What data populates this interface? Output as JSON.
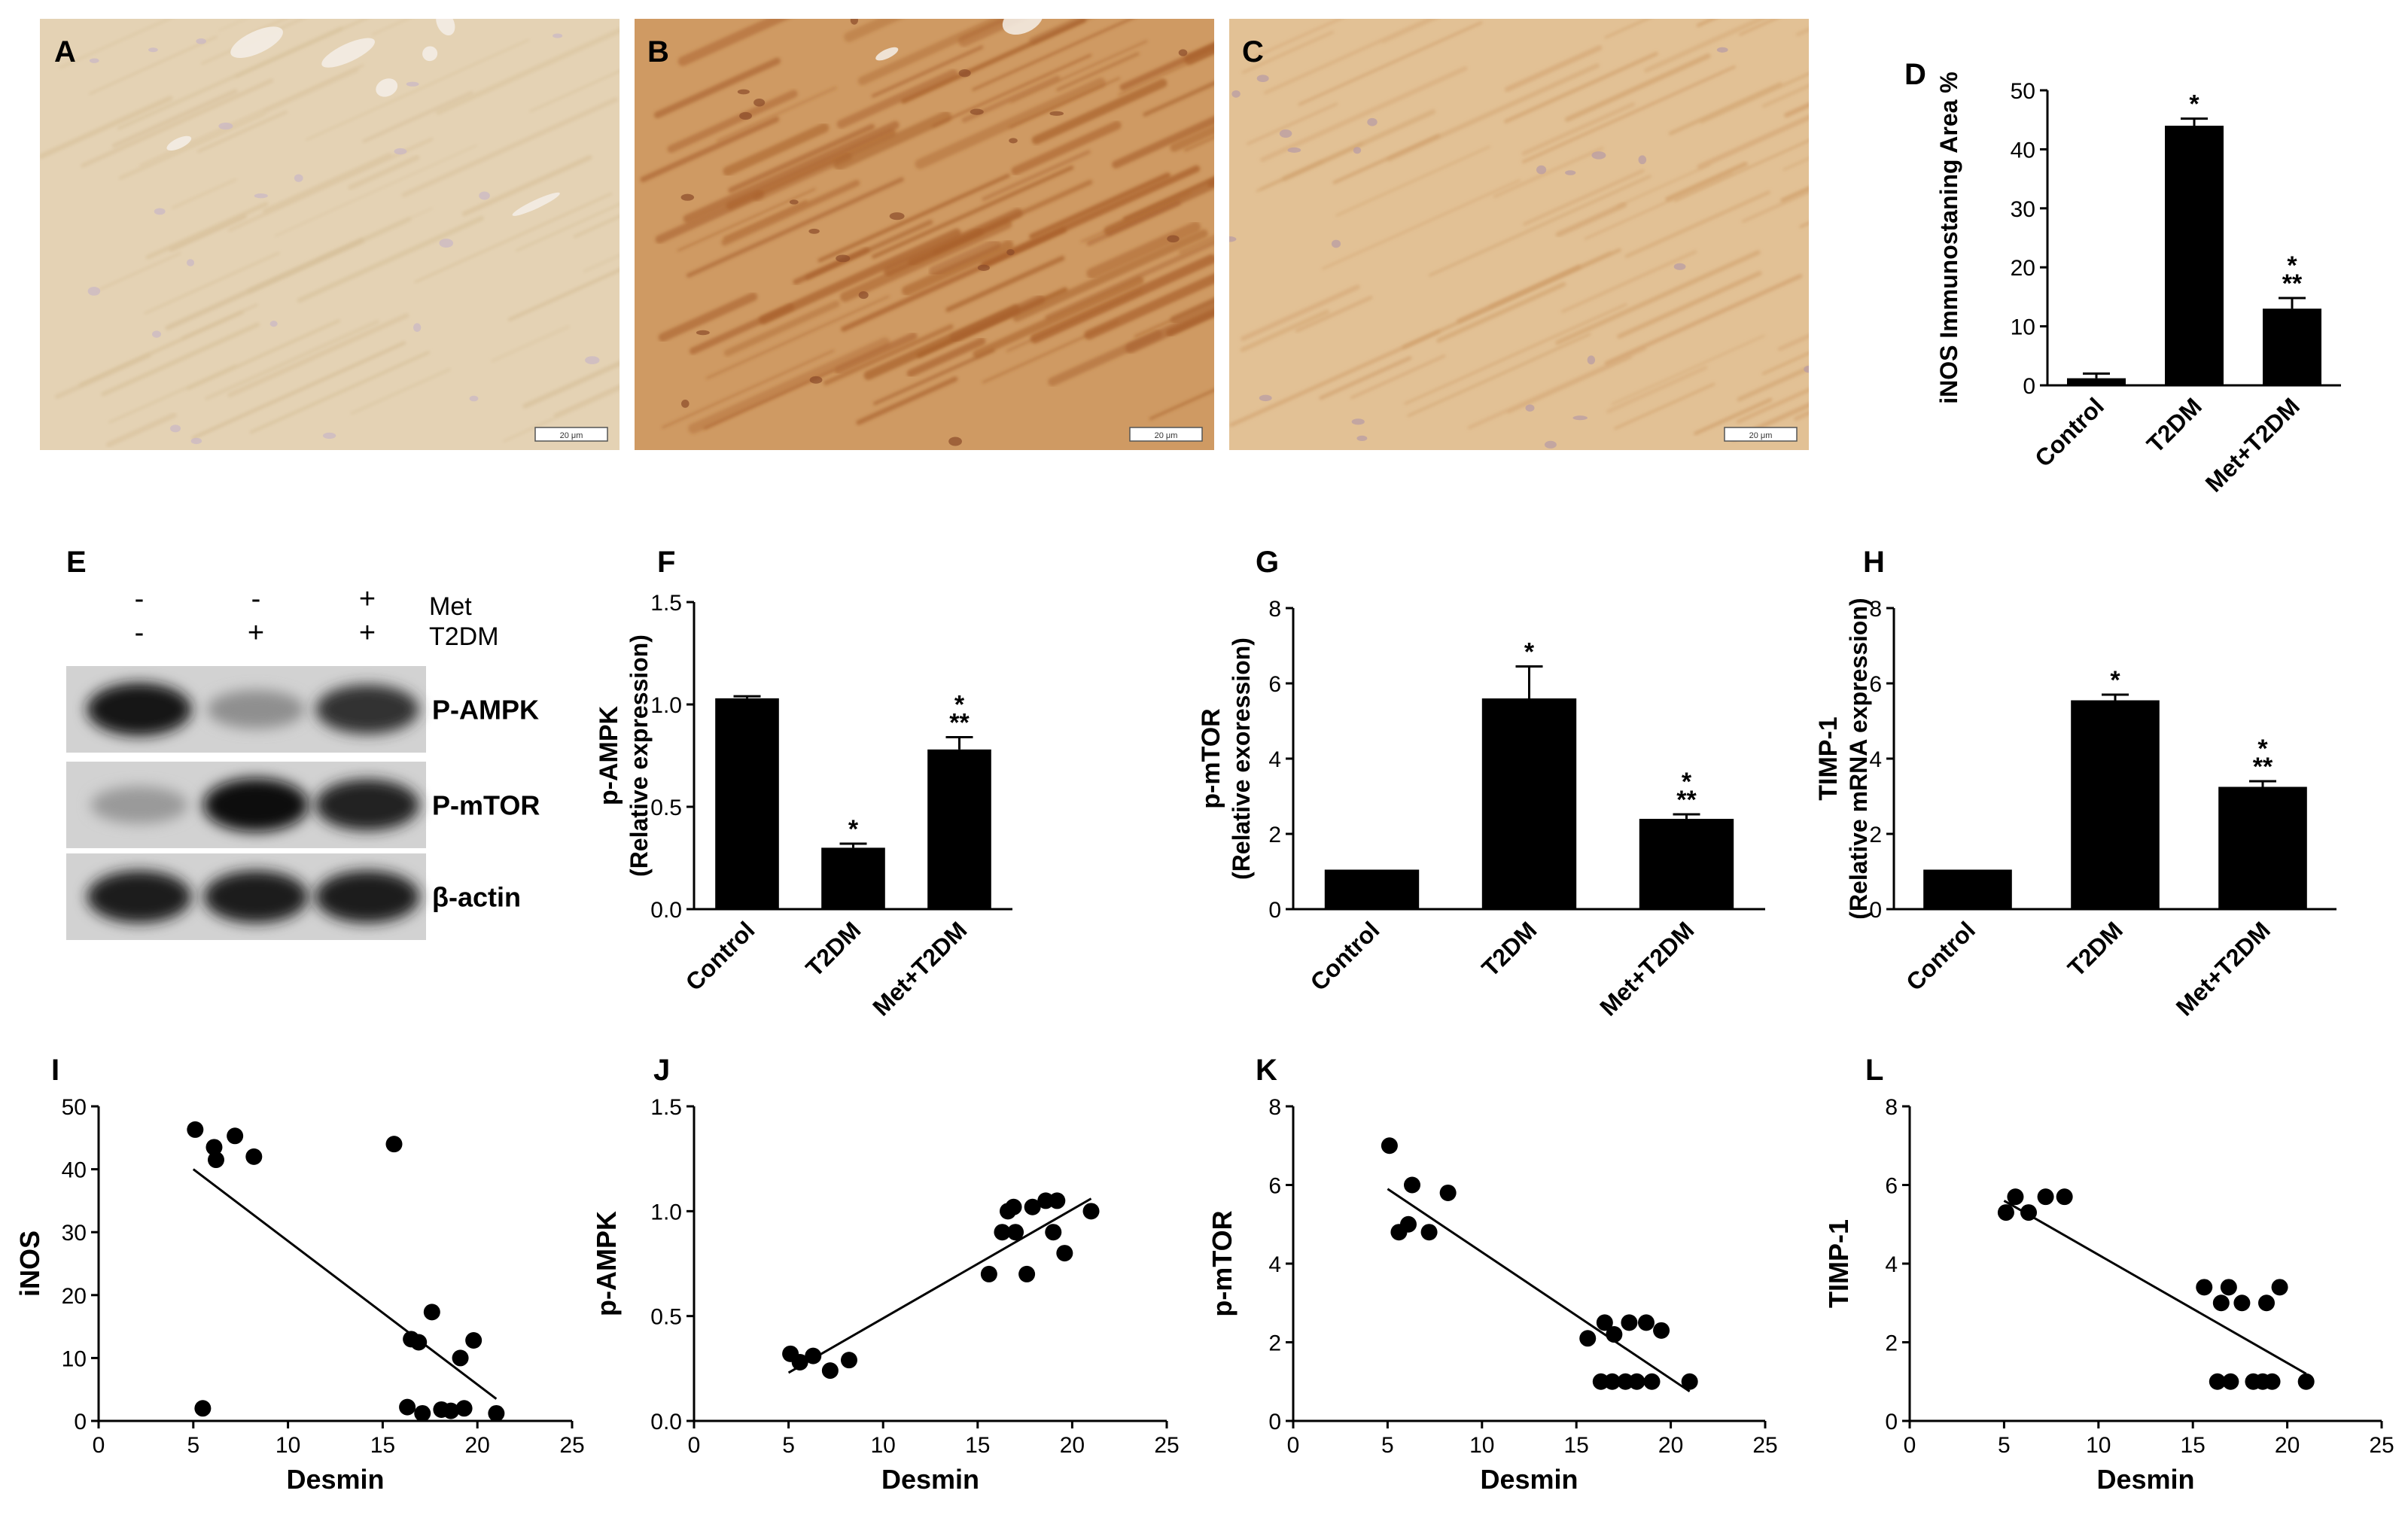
{
  "panels": {
    "A": "A",
    "B": "B",
    "C": "C",
    "D": "D",
    "E": "E",
    "F": "F",
    "G": "G",
    "H": "H",
    "I": "I",
    "J": "J",
    "K": "K",
    "L": "L"
  },
  "micrographs": [
    {
      "panel": "A",
      "scale_bar": "20 μm",
      "tone": "#e4d2b4",
      "fiber": "#d6bf98",
      "cell": "#c9b6c6",
      "density": "light"
    },
    {
      "panel": "B",
      "scale_bar": "20 μm",
      "tone": "#cf9a63",
      "fiber": "#a85f2a",
      "cell": "#8a4a2a",
      "density": "heavy"
    },
    {
      "panel": "C",
      "scale_bar": "20 μm",
      "tone": "#e2c195",
      "fiber": "#cf9d68",
      "cell": "#b79aa6",
      "density": "moderate"
    }
  ],
  "western_blot": {
    "treatment_rows": [
      {
        "label": "Met",
        "signs": [
          "-",
          "-",
          "+"
        ]
      },
      {
        "label": "T2DM",
        "signs": [
          "-",
          "+",
          "+"
        ]
      }
    ],
    "bands": [
      {
        "label": "P-AMPK",
        "intensities": [
          0.95,
          0.35,
          0.8
        ]
      },
      {
        "label": "P-mTOR",
        "intensities": [
          0.3,
          0.98,
          0.88
        ]
      },
      {
        "label": "β-actin",
        "intensities": [
          0.92,
          0.92,
          0.92
        ]
      }
    ]
  },
  "chart_data": [
    {
      "panel": "D",
      "type": "bar",
      "title": "",
      "categories": [
        "Control",
        "T2DM",
        "Met+T2DM"
      ],
      "values": [
        1.2,
        44,
        13
      ],
      "errors": [
        0.8,
        1.2,
        1.8
      ],
      "significance": [
        "",
        "*",
        "*\n**"
      ],
      "ylabel": "iNOS Immunostaning Area %",
      "ylim": [
        0,
        50
      ],
      "yticks": [
        "0",
        "10",
        "20",
        "30",
        "40",
        "50"
      ],
      "grid": false,
      "legend": "none"
    },
    {
      "panel": "F",
      "type": "bar",
      "title": "",
      "categories": [
        "Control",
        "T2DM",
        "Met+T2DM"
      ],
      "values": [
        1.03,
        0.3,
        0.78
      ],
      "errors": [
        0.01,
        0.02,
        0.06
      ],
      "significance": [
        "",
        "*",
        "*\n**"
      ],
      "ylabel": "p-AMPK",
      "ylabel2": "(Relative expression)",
      "ylim": [
        0,
        1.5
      ],
      "yticks": [
        "0.0",
        "0.5",
        "1.0",
        "1.5"
      ],
      "grid": false,
      "legend": "none"
    },
    {
      "panel": "G",
      "type": "bar",
      "title": "",
      "categories": [
        "Control",
        "T2DM",
        "Met+T2DM"
      ],
      "values": [
        1.05,
        5.6,
        2.4
      ],
      "errors": [
        0.0,
        0.85,
        0.12
      ],
      "significance": [
        "",
        "*",
        "*\n**"
      ],
      "ylabel": "p-mTOR",
      "ylabel2": "(Relative exoression)",
      "ylim": [
        0,
        8
      ],
      "yticks": [
        "0",
        "2",
        "4",
        "6",
        "8"
      ],
      "grid": false,
      "legend": "none"
    },
    {
      "panel": "H",
      "type": "bar",
      "title": "",
      "categories": [
        "Control",
        "T2DM",
        "Met+T2DM"
      ],
      "values": [
        1.05,
        5.55,
        3.25
      ],
      "errors": [
        0.0,
        0.15,
        0.15
      ],
      "significance": [
        "",
        "*",
        "*\n**"
      ],
      "ylabel": "TIMP-1",
      "ylabel2": "(Relative mRNA expression)",
      "ylim": [
        0,
        8
      ],
      "yticks": [
        "0",
        "2",
        "4",
        "6",
        "8"
      ],
      "grid": false,
      "legend": "none"
    },
    {
      "panel": "I",
      "type": "scatter",
      "xlabel": "Desmin",
      "ylabel": "iNOS",
      "xlim": [
        0,
        25
      ],
      "ylim": [
        0,
        50
      ],
      "xticks": [
        "0",
        "5",
        "10",
        "15",
        "20",
        "25"
      ],
      "yticks": [
        "0",
        "10",
        "20",
        "30",
        "40",
        "50"
      ],
      "points": [
        [
          5.1,
          46.3
        ],
        [
          5.5,
          2
        ],
        [
          6.1,
          43.5
        ],
        [
          6.2,
          41.5
        ],
        [
          7.2,
          45.3
        ],
        [
          8.2,
          42
        ],
        [
          15.6,
          44
        ],
        [
          16.3,
          2.2
        ],
        [
          16.5,
          13
        ],
        [
          16.9,
          12.5
        ],
        [
          17.1,
          1.2
        ],
        [
          17.6,
          17.3
        ],
        [
          18.1,
          1.8
        ],
        [
          18.6,
          1.6
        ],
        [
          19.1,
          10
        ],
        [
          19.3,
          2
        ],
        [
          19.8,
          12.8
        ],
        [
          21.0,
          1.2
        ]
      ],
      "fit": {
        "x": [
          5.0,
          21.0
        ],
        "y": [
          40,
          3.5
        ]
      },
      "grid": false,
      "legend": "none"
    },
    {
      "panel": "J",
      "type": "scatter",
      "xlabel": "Desmin",
      "ylabel": "p-AMPK",
      "xlim": [
        0,
        25
      ],
      "ylim": [
        0,
        1.5
      ],
      "xticks": [
        "0",
        "5",
        "10",
        "15",
        "20",
        "25"
      ],
      "yticks": [
        "0.0",
        "0.5",
        "1.0",
        "1.5"
      ],
      "points": [
        [
          5.1,
          0.32
        ],
        [
          5.6,
          0.28
        ],
        [
          6.3,
          0.31
        ],
        [
          7.2,
          0.24
        ],
        [
          8.2,
          0.29
        ],
        [
          15.6,
          0.7
        ],
        [
          16.3,
          0.9
        ],
        [
          16.6,
          1.0
        ],
        [
          16.9,
          1.02
        ],
        [
          17.0,
          0.9
        ],
        [
          17.6,
          0.7
        ],
        [
          17.9,
          1.02
        ],
        [
          18.6,
          1.05
        ],
        [
          19.0,
          0.9
        ],
        [
          19.2,
          1.05
        ],
        [
          19.6,
          0.8
        ],
        [
          21.0,
          1.0
        ]
      ],
      "fit": {
        "x": [
          5.0,
          21.0
        ],
        "y": [
          0.23,
          1.06
        ]
      },
      "grid": false,
      "legend": "none"
    },
    {
      "panel": "K",
      "type": "scatter",
      "xlabel": "Desmin",
      "ylabel": "p-mTOR",
      "xlim": [
        0,
        25
      ],
      "ylim": [
        0,
        8
      ],
      "xticks": [
        "0",
        "5",
        "10",
        "15",
        "20",
        "25"
      ],
      "yticks": [
        "0",
        "2",
        "4",
        "6",
        "8"
      ],
      "points": [
        [
          5.1,
          7.0
        ],
        [
          5.6,
          4.8
        ],
        [
          6.1,
          5.0
        ],
        [
          6.3,
          6.0
        ],
        [
          7.2,
          4.8
        ],
        [
          8.2,
          5.8
        ],
        [
          15.6,
          2.1
        ],
        [
          16.3,
          1.0
        ],
        [
          16.5,
          2.5
        ],
        [
          16.9,
          1.0
        ],
        [
          17.0,
          2.2
        ],
        [
          17.6,
          1.0
        ],
        [
          17.8,
          2.5
        ],
        [
          18.2,
          1.0
        ],
        [
          18.7,
          2.5
        ],
        [
          19.0,
          1.0
        ],
        [
          19.5,
          2.3
        ],
        [
          21.0,
          1.0
        ]
      ],
      "fit": {
        "x": [
          5.0,
          21.0
        ],
        "y": [
          5.9,
          0.75
        ]
      },
      "grid": false,
      "legend": "none"
    },
    {
      "panel": "L",
      "type": "scatter",
      "xlabel": "Desmin",
      "ylabel": "TIMP-1",
      "xlim": [
        0,
        25
      ],
      "ylim": [
        0,
        8
      ],
      "xticks": [
        "0",
        "5",
        "10",
        "15",
        "20",
        "25"
      ],
      "yticks": [
        "0",
        "2",
        "4",
        "6",
        "8"
      ],
      "points": [
        [
          5.1,
          5.3
        ],
        [
          5.6,
          5.7
        ],
        [
          6.3,
          5.3
        ],
        [
          7.2,
          5.7
        ],
        [
          8.2,
          5.7
        ],
        [
          15.6,
          3.4
        ],
        [
          16.3,
          1.0
        ],
        [
          16.5,
          3.0
        ],
        [
          16.9,
          3.4
        ],
        [
          17.0,
          1.0
        ],
        [
          17.6,
          3.0
        ],
        [
          18.2,
          1.0
        ],
        [
          18.7,
          1.0
        ],
        [
          18.9,
          3.0
        ],
        [
          19.2,
          1.0
        ],
        [
          19.6,
          3.4
        ],
        [
          21.0,
          1.0
        ]
      ],
      "fit": {
        "x": [
          5.0,
          21.0
        ],
        "y": [
          5.6,
          1.2
        ]
      },
      "grid": false,
      "legend": "none"
    }
  ]
}
